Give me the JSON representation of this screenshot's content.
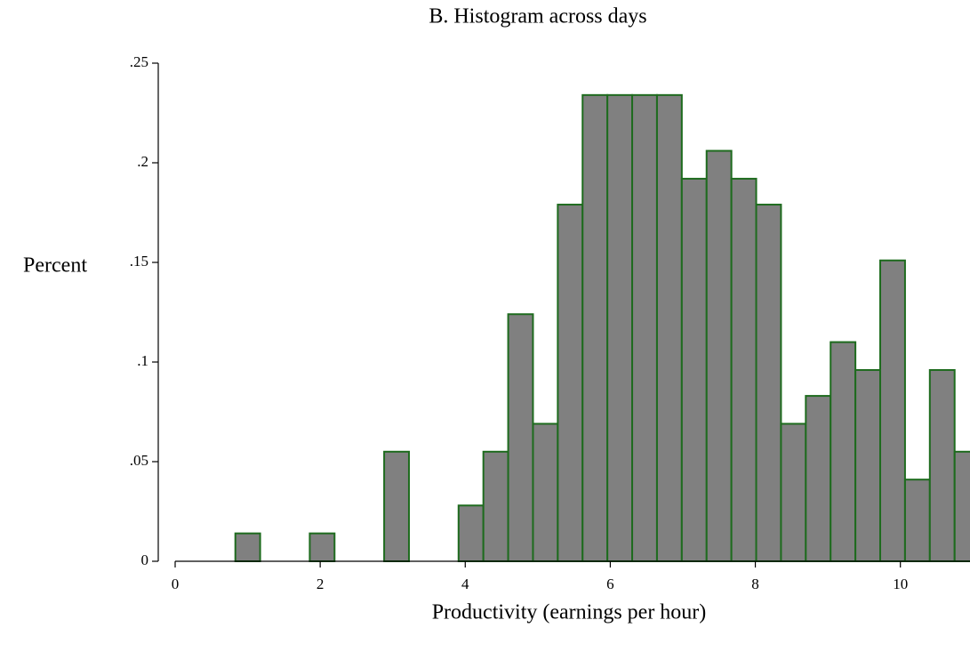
{
  "chart_data": {
    "type": "histogram",
    "title": "B. Histogram across days",
    "xlabel": "Productivity (earnings per hour)",
    "ylabel": "Percent",
    "bins": [
      0.83,
      1.172,
      1.514,
      1.856,
      2.198,
      2.54,
      2.882,
      3.224,
      3.566,
      3.908,
      4.25,
      4.592,
      4.934,
      5.276,
      5.618,
      5.96,
      6.302,
      6.644,
      6.986,
      7.328,
      7.67,
      8.012,
      8.354,
      8.696,
      9.038,
      9.38,
      9.722,
      10.064,
      10.406,
      10.748,
      11.09
    ],
    "values": [
      0.014,
      0,
      0,
      0.014,
      0,
      0,
      0.055,
      0,
      0,
      0.028,
      0.055,
      0.124,
      0.069,
      0.179,
      0.234,
      0.234,
      0.234,
      0.234,
      0.192,
      0.206,
      0.192,
      0.179,
      0.069,
      0.083,
      0.11,
      0.096,
      0.151,
      0.041,
      0.096,
      0.055
    ],
    "color": "#808080",
    "edgecolor": "#1e6b1e",
    "xlim": [
      0,
      10.96
    ],
    "xticks": [
      0,
      2,
      4,
      6,
      8,
      10
    ],
    "ylim": [
      0,
      0.25
    ],
    "yticks": [
      0,
      {
        "value": 0.05,
        "label": ".05"
      },
      {
        "value": 0.1,
        "label": ".1"
      },
      {
        "value": 0.15,
        "label": ".15"
      },
      {
        "value": 0.2,
        "label": ".2"
      },
      {
        "value": 0.25,
        "label": ".25"
      }
    ]
  }
}
